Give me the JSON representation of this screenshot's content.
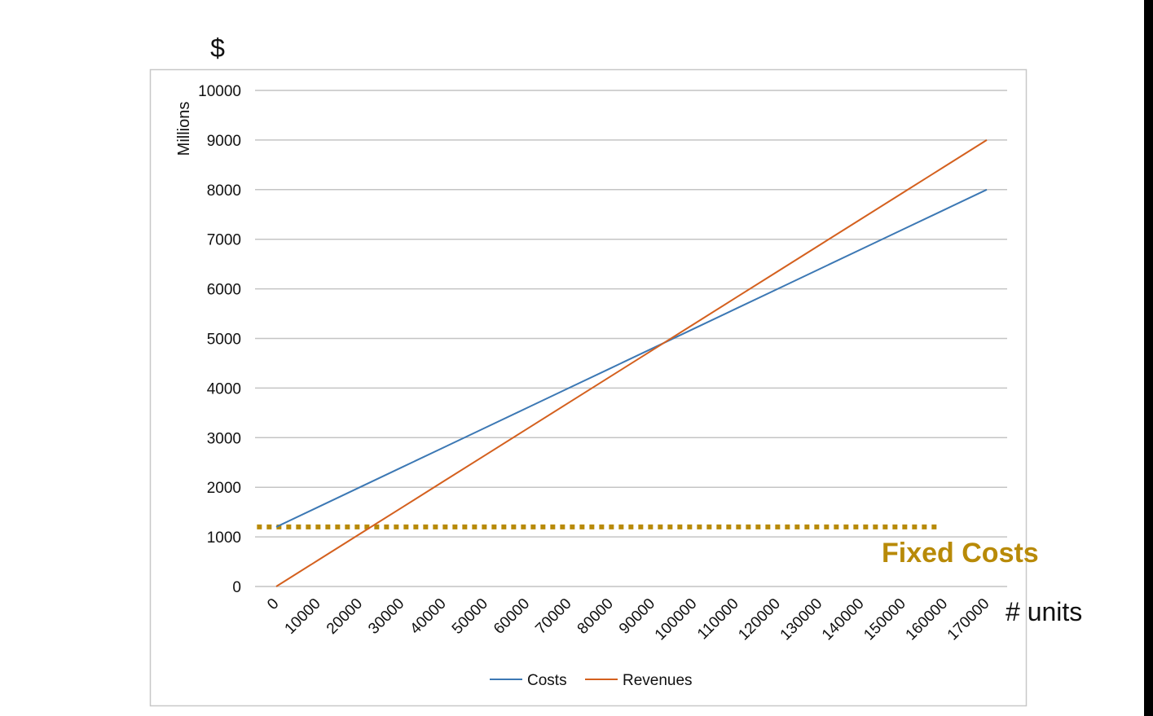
{
  "chart_data": {
    "type": "line",
    "title": "",
    "y_unit_label": "$",
    "ylabel": "Millions",
    "xlabel": "# units",
    "x": [
      0,
      10000,
      20000,
      30000,
      40000,
      50000,
      60000,
      70000,
      80000,
      90000,
      100000,
      110000,
      120000,
      130000,
      140000,
      150000,
      160000,
      170000
    ],
    "x_tick_labels": [
      "0",
      "10000",
      "20000",
      "30000",
      "40000",
      "50000",
      "60000",
      "70000",
      "80000",
      "90000",
      "100000",
      "110000",
      "120000",
      "130000",
      "140000",
      "150000",
      "160000",
      "170000"
    ],
    "y_ticks": [
      0,
      1000,
      2000,
      3000,
      4000,
      5000,
      6000,
      7000,
      8000,
      9000,
      10000
    ],
    "y_tick_labels": [
      "0",
      "1000",
      "2000",
      "3000",
      "4000",
      "5000",
      "6000",
      "7000",
      "8000",
      "9000",
      "10000"
    ],
    "ylim": [
      0,
      10000
    ],
    "grid": true,
    "legend_position": "bottom",
    "series": [
      {
        "name": "Costs",
        "color": "#3c78b4",
        "values": [
          1200,
          1600,
          2000,
          2400,
          2800,
          3200,
          3600,
          4000,
          4400,
          4800,
          5200,
          5600,
          6000,
          6400,
          6800,
          7200,
          7600,
          8000
        ]
      },
      {
        "name": "Revenues",
        "color": "#d4601e",
        "values": [
          0,
          529,
          1059,
          1588,
          2118,
          2647,
          3176,
          3706,
          4235,
          4765,
          5294,
          5824,
          6353,
          6882,
          7412,
          7941,
          8471,
          9000
        ]
      }
    ],
    "annotations": [
      {
        "text": "Fixed Costs",
        "value": 1200,
        "x_range": [
          -5000,
          158000
        ],
        "color": "#b88a08",
        "style": "dotted"
      }
    ]
  }
}
